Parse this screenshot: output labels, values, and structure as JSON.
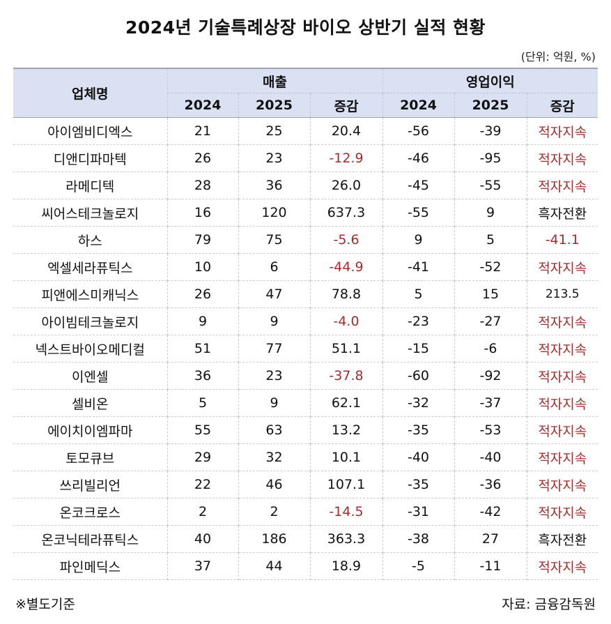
{
  "title": "2024년 기술특례상장 바이오 상반기 실적 현황",
  "unit": "(단위: 억원, %)",
  "header": {
    "company": "업체명",
    "revenue": "매출",
    "operating_profit": "영업이익",
    "col_2024": "2024",
    "col_2025": "2025",
    "col_change": "증감"
  },
  "rows": [
    {
      "name": "아이엠비디엑스",
      "rev2024": "21",
      "rev2025": "25",
      "revChg": "20.4",
      "op2024": "-56",
      "op2025": "-39",
      "opChg": "적자지속"
    },
    {
      "name": "디앤디파마텍",
      "rev2024": "26",
      "rev2025": "23",
      "revChg": "-12.9",
      "op2024": "-46",
      "op2025": "-95",
      "opChg": "적자지속"
    },
    {
      "name": "라메디텍",
      "rev2024": "28",
      "rev2025": "36",
      "revChg": "26.0",
      "op2024": "-45",
      "op2025": "-55",
      "opChg": "적자지속"
    },
    {
      "name": "씨어스테크놀로지",
      "rev2024": "16",
      "rev2025": "120",
      "revChg": "637.3",
      "op2024": "-55",
      "op2025": "9",
      "opChg": "흑자전환"
    },
    {
      "name": "하스",
      "rev2024": "79",
      "rev2025": "75",
      "revChg": "-5.6",
      "op2024": "9",
      "op2025": "5",
      "opChg": "-41.1"
    },
    {
      "name": "엑셀세라퓨틱스",
      "rev2024": "10",
      "rev2025": "6",
      "revChg": "-44.9",
      "op2024": "-41",
      "op2025": "-52",
      "opChg": "적자지속"
    },
    {
      "name": "피앤에스미캐닉스",
      "rev2024": "26",
      "rev2025": "47",
      "revChg": "78.8",
      "op2024": "5",
      "op2025": "15",
      "opChg": "213.5"
    },
    {
      "name": "아이빔테크놀로지",
      "rev2024": "9",
      "rev2025": "9",
      "revChg": "-4.0",
      "op2024": "-23",
      "op2025": "-27",
      "opChg": "적자지속"
    },
    {
      "name": "넥스트바이오메디컬",
      "rev2024": "51",
      "rev2025": "77",
      "revChg": "51.1",
      "op2024": "-15",
      "op2025": "-6",
      "opChg": "적자지속"
    },
    {
      "name": "이엔셀",
      "rev2024": "36",
      "rev2025": "23",
      "revChg": "-37.8",
      "op2024": "-60",
      "op2025": "-92",
      "opChg": "적자지속"
    },
    {
      "name": "셀비온",
      "rev2024": "5",
      "rev2025": "9",
      "revChg": "62.1",
      "op2024": "-32",
      "op2025": "-37",
      "opChg": "적자지속"
    },
    {
      "name": "에이치이엠파마",
      "rev2024": "55",
      "rev2025": "63",
      "revChg": "13.2",
      "op2024": "-35",
      "op2025": "-53",
      "opChg": "적자지속"
    },
    {
      "name": "토모큐브",
      "rev2024": "29",
      "rev2025": "32",
      "revChg": "10.1",
      "op2024": "-40",
      "op2025": "-40",
      "opChg": "적자지속"
    },
    {
      "name": "쓰리빌리언",
      "rev2024": "22",
      "rev2025": "46",
      "revChg": "107.1",
      "op2024": "-35",
      "op2025": "-36",
      "opChg": "적자지속"
    },
    {
      "name": "온코크로스",
      "rev2024": "2",
      "rev2025": "2",
      "revChg": "-14.5",
      "op2024": "-31",
      "op2025": "-42",
      "opChg": "적자지속"
    },
    {
      "name": "온코닉테라퓨틱스",
      "rev2024": "40",
      "rev2025": "186",
      "revChg": "363.3",
      "op2024": "-38",
      "op2025": "27",
      "opChg": "흑자전환"
    },
    {
      "name": "파인메딕스",
      "rev2024": "37",
      "rev2025": "44",
      "revChg": "18.9",
      "op2024": "-5",
      "op2025": "-11",
      "opChg": "적자지속"
    }
  ],
  "footer": {
    "note": "※별도기준",
    "source": "자료: 금융감독원"
  },
  "colors": {
    "header_bg": "#d9e1f2",
    "negative_text": "#a52a2a"
  }
}
